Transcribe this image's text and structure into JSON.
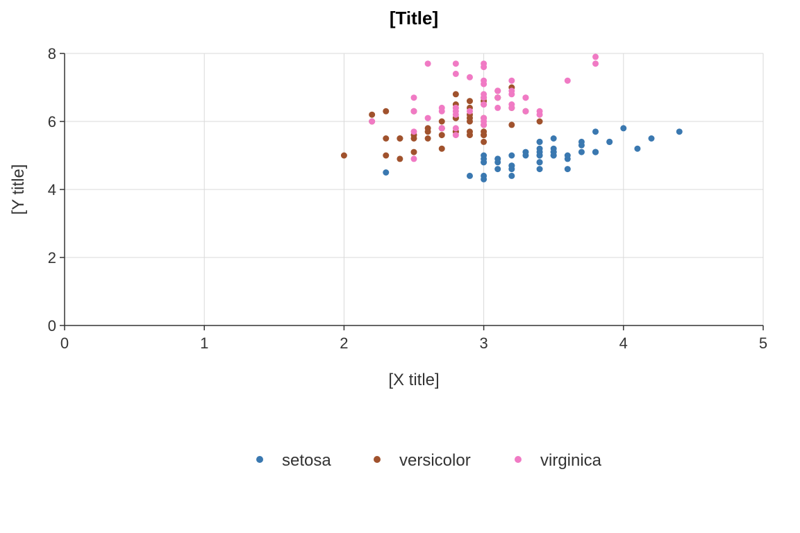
{
  "chart_data": {
    "type": "scatter",
    "title": "[Title]",
    "xlabel": "[X title]",
    "ylabel": "[Y title]",
    "xlim": [
      0,
      5
    ],
    "ylim": [
      0,
      8
    ],
    "xticks": [
      0,
      1,
      2,
      3,
      4,
      5
    ],
    "yticks": [
      0,
      2,
      4,
      6,
      8
    ],
    "grid": true,
    "legend_position": "bottom",
    "series": [
      {
        "name": "setosa",
        "color": "#3a78b0",
        "points": [
          [
            3.5,
            5.1
          ],
          [
            3.0,
            4.9
          ],
          [
            3.2,
            4.7
          ],
          [
            3.1,
            4.6
          ],
          [
            3.6,
            5.0
          ],
          [
            3.9,
            5.4
          ],
          [
            3.4,
            4.6
          ],
          [
            3.4,
            5.0
          ],
          [
            2.9,
            4.4
          ],
          [
            3.1,
            4.9
          ],
          [
            3.7,
            5.4
          ],
          [
            3.4,
            4.8
          ],
          [
            3.0,
            4.8
          ],
          [
            3.0,
            4.3
          ],
          [
            4.0,
            5.8
          ],
          [
            4.4,
            5.7
          ],
          [
            3.9,
            5.4
          ],
          [
            3.5,
            5.1
          ],
          [
            3.8,
            5.7
          ],
          [
            3.8,
            5.1
          ],
          [
            3.4,
            5.4
          ],
          [
            3.7,
            5.1
          ],
          [
            3.6,
            4.6
          ],
          [
            3.3,
            5.1
          ],
          [
            3.4,
            4.8
          ],
          [
            3.0,
            5.0
          ],
          [
            3.4,
            5.0
          ],
          [
            3.5,
            5.2
          ],
          [
            3.4,
            5.2
          ],
          [
            3.2,
            4.7
          ],
          [
            3.1,
            4.8
          ],
          [
            3.4,
            5.4
          ],
          [
            4.1,
            5.2
          ],
          [
            4.2,
            5.5
          ],
          [
            3.1,
            4.9
          ],
          [
            3.2,
            5.0
          ],
          [
            3.5,
            5.5
          ],
          [
            3.6,
            4.9
          ],
          [
            3.0,
            4.4
          ],
          [
            3.4,
            5.1
          ],
          [
            3.5,
            5.0
          ],
          [
            2.3,
            4.5
          ],
          [
            3.2,
            4.4
          ],
          [
            3.5,
            5.0
          ],
          [
            3.8,
            5.1
          ],
          [
            3.0,
            4.8
          ],
          [
            3.8,
            5.1
          ],
          [
            3.2,
            4.6
          ],
          [
            3.7,
            5.3
          ],
          [
            3.3,
            5.0
          ]
        ]
      },
      {
        "name": "versicolor",
        "color": "#a0522d",
        "points": [
          [
            3.2,
            7.0
          ],
          [
            3.2,
            6.4
          ],
          [
            3.1,
            6.9
          ],
          [
            2.3,
            5.5
          ],
          [
            2.8,
            6.5
          ],
          [
            2.8,
            5.7
          ],
          [
            3.3,
            6.3
          ],
          [
            2.4,
            4.9
          ],
          [
            2.9,
            6.6
          ],
          [
            2.7,
            5.2
          ],
          [
            2.0,
            5.0
          ],
          [
            3.0,
            5.9
          ],
          [
            2.2,
            6.0
          ],
          [
            2.9,
            6.1
          ],
          [
            2.9,
            5.6
          ],
          [
            3.1,
            6.7
          ],
          [
            3.0,
            5.6
          ],
          [
            2.7,
            5.8
          ],
          [
            2.2,
            6.2
          ],
          [
            2.5,
            5.6
          ],
          [
            3.2,
            5.9
          ],
          [
            2.8,
            6.1
          ],
          [
            2.5,
            6.3
          ],
          [
            2.8,
            6.1
          ],
          [
            2.9,
            6.4
          ],
          [
            3.0,
            6.6
          ],
          [
            2.8,
            6.8
          ],
          [
            3.0,
            6.7
          ],
          [
            2.9,
            6.0
          ],
          [
            2.6,
            5.7
          ],
          [
            2.4,
            5.5
          ],
          [
            2.4,
            5.5
          ],
          [
            2.7,
            5.8
          ],
          [
            2.7,
            6.0
          ],
          [
            3.0,
            5.4
          ],
          [
            3.4,
            6.0
          ],
          [
            3.1,
            6.7
          ],
          [
            2.3,
            6.3
          ],
          [
            3.0,
            5.6
          ],
          [
            2.5,
            5.5
          ],
          [
            2.6,
            5.5
          ],
          [
            3.0,
            6.1
          ],
          [
            2.6,
            5.8
          ],
          [
            2.3,
            5.0
          ],
          [
            2.7,
            5.6
          ],
          [
            3.0,
            5.7
          ],
          [
            2.9,
            5.7
          ],
          [
            2.9,
            6.2
          ],
          [
            2.5,
            5.1
          ],
          [
            2.8,
            5.7
          ]
        ]
      },
      {
        "name": "virginica",
        "color": "#f07ac4",
        "points": [
          [
            3.3,
            6.3
          ],
          [
            2.7,
            5.8
          ],
          [
            3.0,
            7.1
          ],
          [
            2.9,
            6.3
          ],
          [
            3.0,
            6.5
          ],
          [
            3.0,
            7.6
          ],
          [
            2.5,
            4.9
          ],
          [
            2.9,
            7.3
          ],
          [
            2.5,
            6.7
          ],
          [
            3.6,
            7.2
          ],
          [
            3.2,
            6.5
          ],
          [
            2.7,
            6.4
          ],
          [
            3.0,
            6.8
          ],
          [
            2.5,
            5.7
          ],
          [
            2.8,
            5.8
          ],
          [
            3.2,
            6.4
          ],
          [
            3.0,
            6.5
          ],
          [
            3.8,
            7.7
          ],
          [
            2.6,
            7.7
          ],
          [
            2.2,
            6.0
          ],
          [
            3.2,
            6.9
          ],
          [
            2.8,
            5.6
          ],
          [
            2.8,
            7.7
          ],
          [
            2.7,
            6.3
          ],
          [
            3.3,
            6.7
          ],
          [
            3.2,
            7.2
          ],
          [
            2.8,
            6.2
          ],
          [
            3.0,
            6.1
          ],
          [
            2.8,
            6.4
          ],
          [
            3.0,
            7.2
          ],
          [
            2.8,
            7.4
          ],
          [
            3.8,
            7.9
          ],
          [
            2.8,
            6.4
          ],
          [
            2.8,
            6.3
          ],
          [
            2.6,
            6.1
          ],
          [
            3.0,
            7.7
          ],
          [
            3.4,
            6.3
          ],
          [
            3.1,
            6.4
          ],
          [
            3.0,
            6.0
          ],
          [
            3.1,
            6.9
          ],
          [
            3.1,
            6.7
          ],
          [
            3.1,
            6.9
          ],
          [
            2.7,
            5.8
          ],
          [
            3.2,
            6.8
          ],
          [
            3.3,
            6.7
          ],
          [
            3.0,
            6.7
          ],
          [
            2.5,
            6.3
          ],
          [
            3.0,
            6.5
          ],
          [
            3.4,
            6.2
          ],
          [
            3.0,
            5.9
          ]
        ]
      }
    ]
  }
}
